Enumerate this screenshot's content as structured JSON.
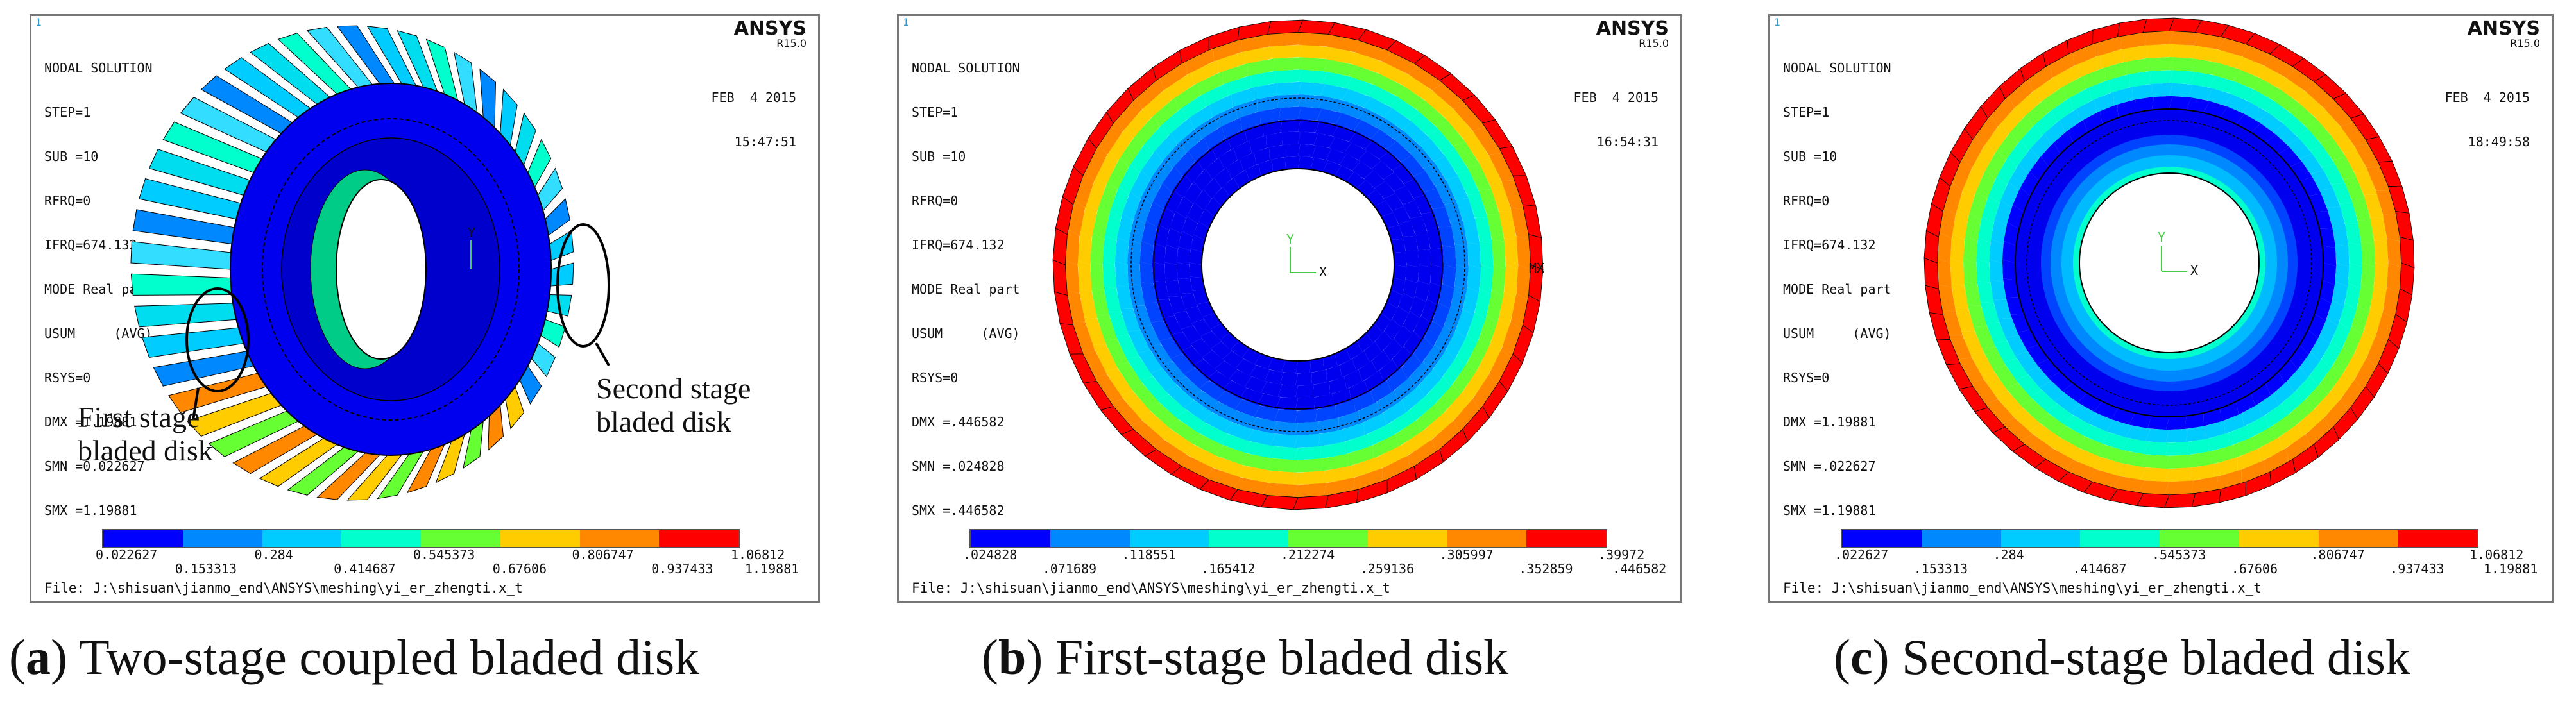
{
  "palette": [
    "#0000ff",
    "#0088ff",
    "#00ccff",
    "#00ffcc",
    "#66ff33",
    "#ffcc00",
    "#ff8800",
    "#ff0000"
  ],
  "common": {
    "solution": "NODAL SOLUTION",
    "step": "STEP=1",
    "sub": "SUB =10",
    "rfrq": "RFRQ=0",
    "ifrq": "IFRQ=674.132",
    "mode": "MODE Real part",
    "usum": "USUM     (AVG)",
    "rsys": "RSYS=0",
    "brand": "ANSYS",
    "version": "R15.0",
    "date": "FEB  4 2015",
    "file": "File: J:\\shisuan\\jianmo_end\\ANSYS\\meshing\\yi_er_zhengti.x_t",
    "corner": "1",
    "axis_x": "X",
    "axis_y": "Y",
    "mx_mark": "MX"
  },
  "panels": [
    {
      "id": "a",
      "dmx": "DMX =1.19881",
      "smn": "SMN =0.022627",
      "smx": "SMX =1.19881",
      "time": "15:47:51",
      "legend_top": [
        "0.022627",
        "0.284",
        "0.545373",
        "0.806747",
        "1.06812"
      ],
      "legend_bottom": [
        "0.153313",
        "0.414687",
        "0.67606",
        "0.937433",
        "1.19881"
      ],
      "caption_letter": "a",
      "caption_text": " Two-stage coupled bladed disk",
      "label_first": "First stage\nbladed disk",
      "label_second": "Second stage\nbladed disk"
    },
    {
      "id": "b",
      "dmx": "DMX =.446582",
      "smn": "SMN =.024828",
      "smx": "SMX =.446582",
      "time": "16:54:31",
      "legend_top": [
        ".024828",
        ".118551",
        ".212274",
        ".305997",
        ".39972"
      ],
      "legend_bottom": [
        ".071689",
        ".165412",
        ".259136",
        ".352859",
        ".446582"
      ],
      "caption_letter": "b",
      "caption_text": " First-stage bladed disk"
    },
    {
      "id": "c",
      "dmx": "DMX =1.19881",
      "smn": "SMN =.022627",
      "smx": "SMX =1.19881",
      "time": "18:49:58",
      "legend_top": [
        ".022627",
        ".284",
        ".545373",
        ".806747",
        "1.06812"
      ],
      "legend_bottom": [
        ".153313",
        ".414687",
        ".67606",
        ".937433",
        "1.19881"
      ],
      "caption_letter": "c",
      "caption_text": " Second-stage bladed disk"
    }
  ]
}
